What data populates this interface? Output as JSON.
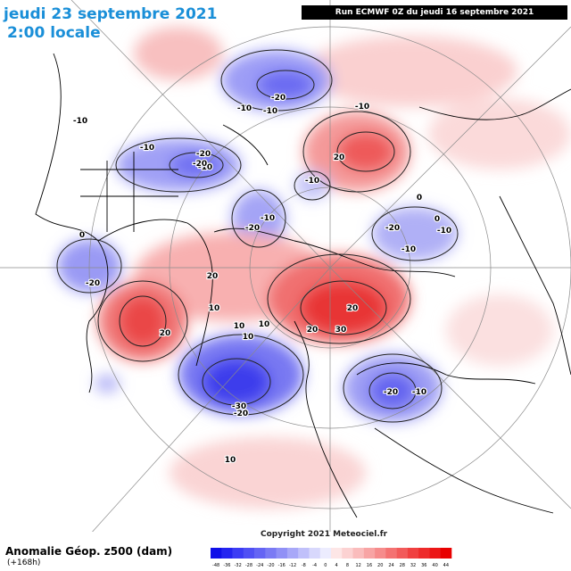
{
  "header": {
    "date": "jeudi 23 septembre 2021",
    "time": "2:00 locale",
    "run": "Run ECMWF 0Z du jeudi 16 septembre 2021"
  },
  "footer": {
    "field": "Anomalie Géop. z500 (dam)",
    "lead": "(+168h)",
    "copyright": "Copyright 2021 Meteociel.fr"
  },
  "legend": {
    "ticks": [
      "-48",
      "-36",
      "-32",
      "-28",
      "-24",
      "-20",
      "-16",
      "-12",
      "-8",
      "-4",
      "0",
      "4",
      "8",
      "12",
      "16",
      "20",
      "24",
      "28",
      "32",
      "36",
      "40",
      "44"
    ],
    "colors": [
      "#1010e8",
      "#2424f0",
      "#3c3cf4",
      "#5050f4",
      "#6464f4",
      "#7a7af4",
      "#9090f6",
      "#a8a8f8",
      "#c0c0fa",
      "#d8d8fc",
      "#ececfe",
      "#fde6e6",
      "#fcd2d2",
      "#fabcbc",
      "#f8a4a4",
      "#f68c8c",
      "#f47272",
      "#f25a5a",
      "#f04040",
      "#ee2a2a",
      "#ec1616",
      "#e80000"
    ]
  },
  "map": {
    "contour_labels": [
      "-20",
      "-10",
      "-10",
      "-20",
      "-10",
      "-20",
      "-20",
      "-10",
      "-10",
      "-10",
      "-20",
      "-10",
      "-10",
      "-10",
      "20",
      "20",
      "20",
      "20",
      "10",
      "10",
      "30",
      "20",
      "10",
      "-10",
      "-20",
      "-30",
      "-20",
      "-20",
      "-10",
      "10",
      "10",
      "0",
      "0",
      "0"
    ]
  }
}
